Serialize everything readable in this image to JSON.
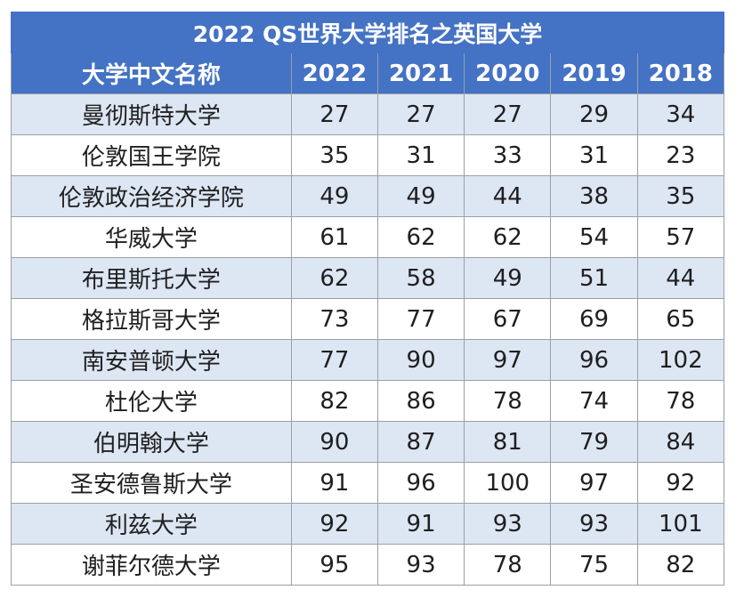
{
  "chart_data": {
    "type": "table",
    "title": "2022 QS世界大学排名之英国大学",
    "columns": [
      "大学中文名称",
      "2022",
      "2021",
      "2020",
      "2019",
      "2018"
    ],
    "rows": [
      [
        "曼彻斯特大学",
        "27",
        "27",
        "27",
        "29",
        "34"
      ],
      [
        "伦敦国王学院",
        "35",
        "31",
        "33",
        "31",
        "23"
      ],
      [
        "伦敦政治经济学院",
        "49",
        "49",
        "44",
        "38",
        "35"
      ],
      [
        "华威大学",
        "61",
        "62",
        "62",
        "54",
        "57"
      ],
      [
        "布里斯托大学",
        "62",
        "58",
        "49",
        "51",
        "44"
      ],
      [
        "格拉斯哥大学",
        "73",
        "77",
        "67",
        "69",
        "65"
      ],
      [
        "南安普顿大学",
        "77",
        "90",
        "97",
        "96",
        "102"
      ],
      [
        "杜伦大学",
        "82",
        "86",
        "78",
        "74",
        "78"
      ],
      [
        "伯明翰大学",
        "90",
        "87",
        "81",
        "79",
        "84"
      ],
      [
        "圣安德鲁斯大学",
        "91",
        "96",
        "100",
        "97",
        "92"
      ],
      [
        "利兹大学",
        "92",
        "91",
        "93",
        "93",
        "101"
      ],
      [
        "谢菲尔德大学",
        "95",
        "93",
        "78",
        "75",
        "82"
      ]
    ]
  },
  "colors": {
    "header_bg": "#4472c4",
    "header_text": "#ffffff",
    "row_odd_bg": "#dde6f3",
    "row_even_bg": "#ffffff",
    "border": "#9aa0a6"
  }
}
